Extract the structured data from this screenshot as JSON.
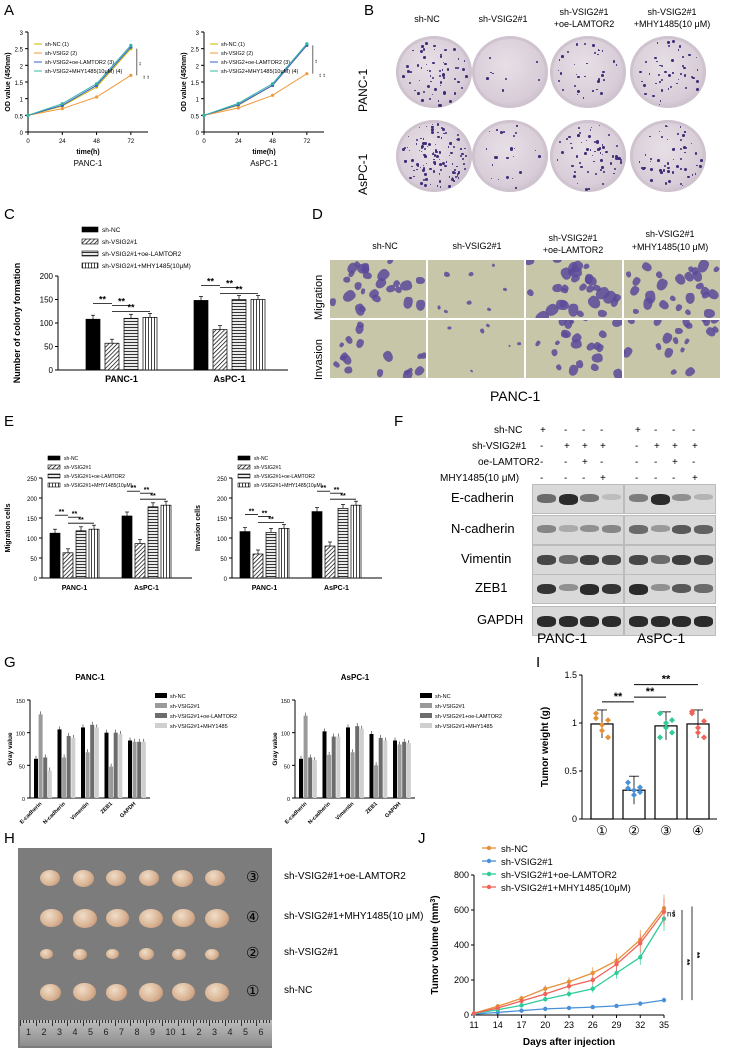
{
  "panels": {
    "A": {
      "label": "A",
      "left": {
        "title": "PANC-1",
        "ylabel": "OD value (450nm)",
        "xlabel": "time(h)"
      },
      "right": {
        "title": "AsPC-1",
        "ylabel": "OD value (450nm)",
        "xlabel": "time(h)"
      },
      "sig": "**"
    },
    "B": {
      "label": "B",
      "cols": [
        "sh-NC",
        "sh-VSIG2#1",
        "sh-VSIG2#1",
        "+oe-LAMTOR2",
        "sh-VSIG2#1",
        "+MHY1485(10 μM)"
      ],
      "rows": [
        "PANC-1",
        "AsPC-1"
      ]
    },
    "C": {
      "label": "C",
      "ylabel": "Number of colony formation",
      "sig": "**"
    },
    "D": {
      "label": "D",
      "cols": [
        "sh-NC",
        "sh-VSIG2#1",
        "sh-VSIG2#1",
        "+oe-LAMTOR2",
        "sh-VSIG2#1",
        "+MHY1485(10 μM)"
      ],
      "rows": [
        "Migration",
        "Invasion"
      ],
      "caption": "PANC-1"
    },
    "E": {
      "label": "E",
      "left_ylabel": "Migration cells",
      "right_ylabel": "Invasion cells",
      "sig": "**"
    },
    "F": {
      "label": "F",
      "conditions": [
        {
          "name": "sh-NC",
          "marks": [
            "+",
            "-",
            "-",
            "-",
            "+",
            "-",
            "-",
            "-"
          ]
        },
        {
          "name": "sh-VSIG2#1",
          "marks": [
            "-",
            "+",
            "+",
            "+",
            "-",
            "+",
            "+",
            "+"
          ]
        },
        {
          "name": "oe-LAMTOR2",
          "marks": [
            "-",
            "-",
            "+",
            "-",
            "-",
            "-",
            "+",
            "-"
          ]
        },
        {
          "name": "MHY1485(10 μM)",
          "marks": [
            "-",
            "-",
            "-",
            "+",
            "-",
            "-",
            "-",
            "+"
          ]
        }
      ],
      "proteins": [
        "E-cadherin",
        "N-cadherin",
        "Vimentin",
        "ZEB1",
        "GAPDH"
      ],
      "cells": [
        "PANC-1",
        "AsPC-1"
      ]
    },
    "G": {
      "label": "G",
      "left_title": "PANC-1",
      "right_title": "AsPC-1",
      "ylabel": "Gray value"
    },
    "H": {
      "label": "H",
      "rows": [
        "sh-VSIG2#1+oe-LAMTOR2",
        "sh-VSIG2#1+MHY1485(10 μM)",
        "sh-VSIG2#1",
        "sh-NC"
      ],
      "circled": [
        "③",
        "④",
        "②",
        "①"
      ],
      "ruler_nums": [
        "1",
        "2",
        "3",
        "4",
        "5",
        "6",
        "7",
        "8",
        "9",
        "10",
        "1",
        "2",
        "3",
        "4",
        "5",
        "6"
      ]
    },
    "I": {
      "label": "I",
      "ylabel": "Tumor weight (g)",
      "sig": "**"
    },
    "J": {
      "label": "J",
      "ylabel": "Tumor volume (mm",
      "ylabel_sup": "3",
      "ylabel_end": ")",
      "xlabel": "Days after injection",
      "ns": "ns",
      "sig": "**"
    }
  },
  "colors": {
    "nc": "#e69138",
    "vsig": "#4a90d9",
    "lamtor": "#2ecc9a",
    "mhy": "#f0645a",
    "bar_black": "#000000"
  },
  "chart_data": [
    {
      "id": "A-left",
      "type": "line",
      "title": "PANC-1",
      "xlabel": "time(h)",
      "ylabel": "OD value (450nm)",
      "x": [
        0,
        24,
        48,
        72
      ],
      "xlim": [
        0,
        84
      ],
      "ylim": [
        0,
        3.0
      ],
      "yticks": [
        0,
        0.5,
        1.0,
        1.5,
        2.0,
        2.5,
        3.0
      ],
      "xticks": [
        0,
        24,
        48,
        72
      ],
      "legend": "top-left",
      "series": [
        {
          "name": "sh-NC (1)",
          "color": "#c8b400",
          "values": [
            0.5,
            0.78,
            1.35,
            2.5
          ]
        },
        {
          "name": "sh-VSIG2 (2)",
          "color": "#f09a3e",
          "values": [
            0.5,
            0.7,
            1.05,
            1.7
          ]
        },
        {
          "name": "sh-VSIG2+oe-LAMTOR2 (3)",
          "color": "#3b5bd1",
          "values": [
            0.5,
            0.8,
            1.4,
            2.55
          ]
        },
        {
          "name": "sh-VSIG2+MHY1485(10μM) (4)",
          "color": "#2fb7a7",
          "values": [
            0.5,
            0.85,
            1.45,
            2.6
          ]
        }
      ]
    },
    {
      "id": "A-right",
      "type": "line",
      "title": "AsPC-1",
      "xlabel": "time(h)",
      "ylabel": "OD value (450nm)",
      "x": [
        0,
        24,
        48,
        72
      ],
      "xlim": [
        0,
        84
      ],
      "ylim": [
        0,
        3.0
      ],
      "yticks": [
        0,
        0.5,
        1.0,
        1.5,
        2.0,
        2.5,
        3.0
      ],
      "xticks": [
        0,
        24,
        48,
        72
      ],
      "legend": "top-left",
      "series": [
        {
          "name": "sh-NC (1)",
          "color": "#c8b400",
          "values": [
            0.5,
            0.8,
            1.4,
            2.6
          ]
        },
        {
          "name": "sh-VSIG2 (2)",
          "color": "#f09a3e",
          "values": [
            0.5,
            0.72,
            1.1,
            1.75
          ]
        },
        {
          "name": "sh-VSIG2+oe-LAMTOR2 (3)",
          "color": "#3b5bd1",
          "values": [
            0.5,
            0.82,
            1.4,
            2.6
          ]
        },
        {
          "name": "sh-VSIG2+MHY1485(10μM) (4)",
          "color": "#2fb7a7",
          "values": [
            0.5,
            0.86,
            1.45,
            2.65
          ]
        }
      ]
    },
    {
      "id": "C",
      "type": "bar",
      "ylabel": "Number of colony formation",
      "categories": [
        "PANC-1",
        "AsPC-1"
      ],
      "ylim": [
        0,
        200
      ],
      "yticks": [
        0,
        50,
        100,
        150,
        200
      ],
      "legend": "top-left",
      "series": [
        {
          "name": "sh-NC",
          "values": [
            108,
            148
          ]
        },
        {
          "name": "sh-VSIG2#1",
          "values": [
            57,
            86
          ]
        },
        {
          "name": "sh-VSIG2#1+oe-LAMTOR2",
          "values": [
            110,
            150
          ]
        },
        {
          "name": "sh-VSIG2#1+MHY1485(10μM)",
          "values": [
            112,
            150
          ]
        }
      ]
    },
    {
      "id": "E-left",
      "type": "bar",
      "ylabel": "Migration cells",
      "categories": [
        "PANC-1",
        "AsPC-1"
      ],
      "ylim": [
        0,
        250
      ],
      "yticks": [
        0,
        50,
        100,
        150,
        200,
        250
      ],
      "legend": "top-left",
      "series": [
        {
          "name": "sh-NC",
          "values": [
            112,
            155
          ]
        },
        {
          "name": "sh-VSIG2#1",
          "values": [
            63,
            86
          ]
        },
        {
          "name": "sh-VSIG2#1+oe-LAMTOR2",
          "values": [
            118,
            178
          ]
        },
        {
          "name": "sh-VSIG2#1+MHY1485(10μM)",
          "values": [
            122,
            182
          ]
        }
      ]
    },
    {
      "id": "E-right",
      "type": "bar",
      "ylabel": "Invasion cells",
      "categories": [
        "PANC-1",
        "AsPC-1"
      ],
      "ylim": [
        0,
        250
      ],
      "yticks": [
        0,
        50,
        100,
        150,
        200,
        250
      ],
      "legend": "top-left",
      "series": [
        {
          "name": "sh-NC",
          "values": [
            116,
            166
          ]
        },
        {
          "name": "sh-VSIG2#1",
          "values": [
            60,
            80
          ]
        },
        {
          "name": "sh-VSIG2#1+oe-LAMTOR2",
          "values": [
            114,
            174
          ]
        },
        {
          "name": "sh-VSIG2#1+MHY1485(10μM)",
          "values": [
            124,
            182
          ]
        }
      ]
    },
    {
      "id": "G-left",
      "type": "bar",
      "title": "PANC-1",
      "ylabel": "Gray value",
      "categories": [
        "E-cadherin",
        "N-cadherin",
        "Vimentin",
        "ZEB1",
        "GAPDH"
      ],
      "ylim": [
        0,
        150
      ],
      "yticks": [
        0,
        50,
        100,
        150
      ],
      "legend": "right",
      "series": [
        {
          "name": "sh-NC",
          "values": [
            60,
            105,
            108,
            100,
            88
          ]
        },
        {
          "name": "sh-VSIG2#1",
          "values": [
            128,
            62,
            70,
            48,
            86
          ]
        },
        {
          "name": "sh-VSIG2#1+oe-LAMTOR2",
          "values": [
            62,
            95,
            112,
            100,
            86
          ]
        },
        {
          "name": "sh-VSIG2#1+MHY1485",
          "values": [
            42,
            92,
            108,
            98,
            86
          ]
        }
      ]
    },
    {
      "id": "G-right",
      "type": "bar",
      "title": "AsPC-1",
      "ylabel": "Gray value",
      "categories": [
        "E-cadherin",
        "N-cadherin",
        "Vimentin",
        "ZEB1",
        "GAPDH"
      ],
      "ylim": [
        0,
        150
      ],
      "yticks": [
        0,
        50,
        100,
        150
      ],
      "legend": "right",
      "series": [
        {
          "name": "sh-NC",
          "values": [
            60,
            102,
            108,
            98,
            88
          ]
        },
        {
          "name": "sh-VSIG2#1",
          "values": [
            126,
            66,
            70,
            50,
            82
          ]
        },
        {
          "name": "sh-VSIG2#1+oe-LAMTOR2",
          "values": [
            62,
            94,
            110,
            92,
            86
          ]
        },
        {
          "name": "sh-VSIG2#1+MHY1485",
          "values": [
            58,
            94,
            106,
            88,
            84
          ]
        }
      ]
    },
    {
      "id": "I",
      "type": "scatter",
      "ylabel": "Tumor weight (g)",
      "categories": [
        "①",
        "②",
        "③",
        "④"
      ],
      "ylim": [
        0,
        1.5
      ],
      "yticks": [
        0.0,
        0.5,
        1.0,
        1.5
      ],
      "series": [
        {
          "name": "①",
          "color": "#e69138",
          "mean": 0.99,
          "points": [
            1.05,
            0.92,
            0.85,
            1.1,
            0.98,
            1.03
          ]
        },
        {
          "name": "②",
          "color": "#4a90d9",
          "mean": 0.3,
          "points": [
            0.38,
            0.3,
            0.28,
            0.32,
            0.25,
            0.33
          ]
        },
        {
          "name": "③",
          "color": "#2ecc9a",
          "mean": 0.97,
          "points": [
            1.1,
            0.95,
            0.9,
            0.85,
            1.0,
            1.03
          ]
        },
        {
          "name": "④",
          "color": "#f0645a",
          "mean": 0.99,
          "points": [
            1.1,
            0.9,
            0.85,
            1.12,
            0.95,
            1.02
          ]
        }
      ]
    },
    {
      "id": "J",
      "type": "line",
      "xlabel": "Days after injection",
      "ylabel": "Tumor volume (mm3)",
      "x": [
        11,
        14,
        17,
        20,
        23,
        26,
        29,
        32,
        35
      ],
      "xlim": [
        11,
        35
      ],
      "ylim": [
        0,
        800
      ],
      "yticks": [
        0,
        200,
        400,
        600,
        800
      ],
      "legend": "top-left",
      "series": [
        {
          "name": "sh-NC",
          "color": "#e69138",
          "values": [
            10,
            50,
            95,
            150,
            190,
            240,
            310,
            430,
            610
          ]
        },
        {
          "name": "sh-VSIG2#1",
          "color": "#4a90d9",
          "values": [
            5,
            15,
            25,
            35,
            40,
            45,
            52,
            65,
            85
          ]
        },
        {
          "name": "sh-VSIG2#1+oe-LAMTOR2",
          "color": "#2ecc9a",
          "values": [
            8,
            30,
            55,
            90,
            120,
            150,
            240,
            330,
            550
          ]
        },
        {
          "name": "sh-VSIG2#1+MHY1485(10μM)",
          "color": "#f0645a",
          "values": [
            9,
            40,
            80,
            120,
            165,
            200,
            290,
            410,
            590
          ]
        }
      ]
    }
  ]
}
